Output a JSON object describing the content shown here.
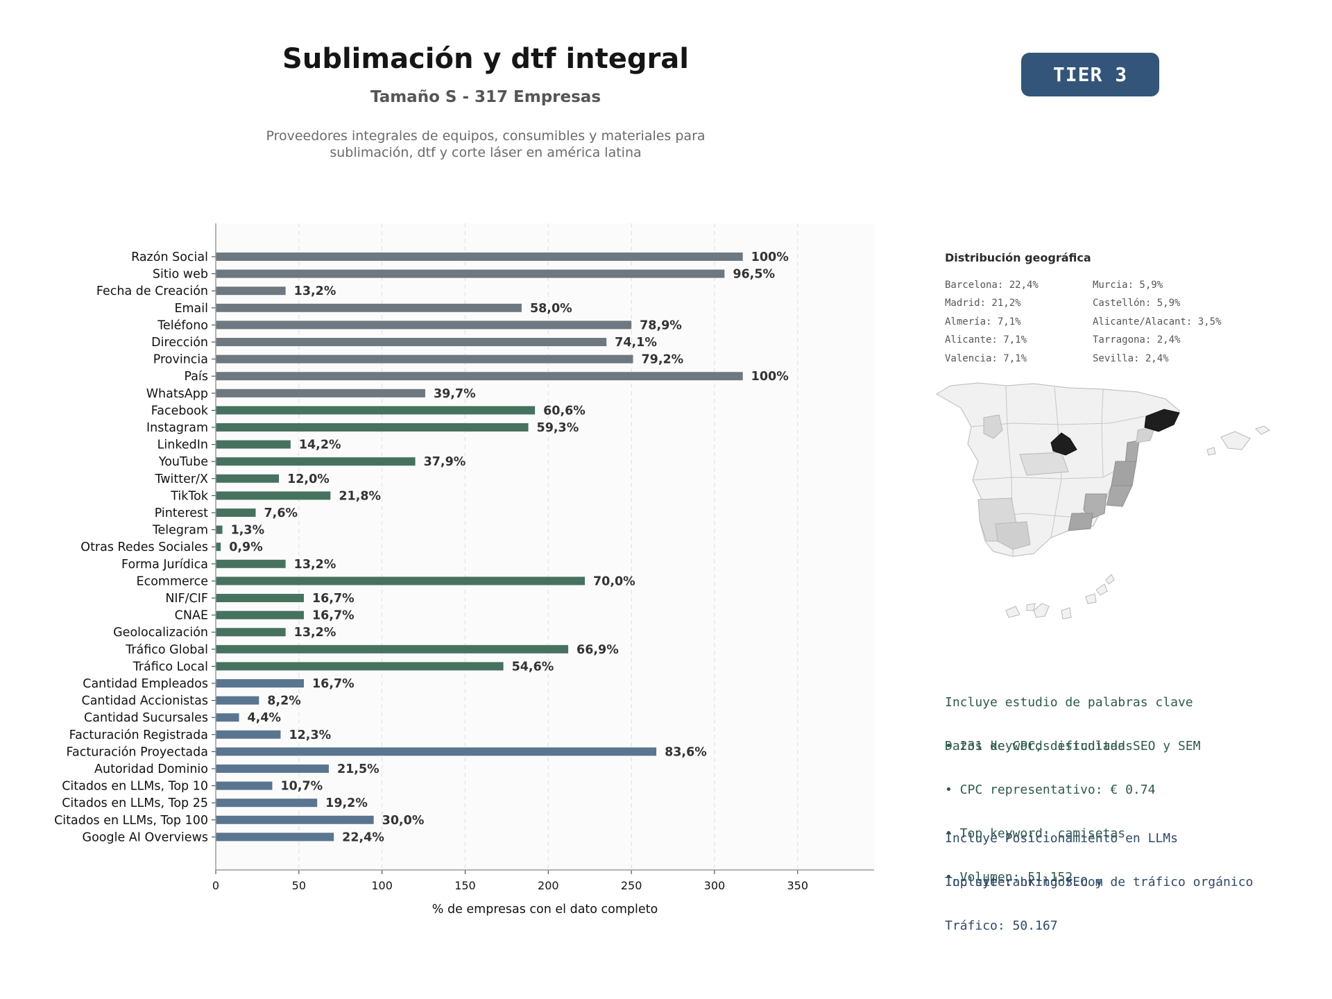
{
  "header": {
    "title": "Sublimación y dtf integral",
    "subtitle": "Tamaño S - 317 Empresas",
    "description_line1": "Proveedores integrales de equipos, consumibles y materiales para",
    "description_line2": "sublimación, dtf y corte láser en américa latina",
    "tier": "TIER 3"
  },
  "chart_data": {
    "type": "bar",
    "orientation": "horizontal",
    "xlabel": "% de empresas con el dato completo",
    "xlim": [
      0,
      396
    ],
    "xticks": [
      0,
      50,
      100,
      150,
      200,
      250,
      300,
      350
    ],
    "grid": true,
    "categories": [
      "Razón Social",
      "Sitio web",
      "Fecha de Creación",
      "Email",
      "Teléfono",
      "Dirección",
      "Provincia",
      "País",
      "WhatsApp",
      "Facebook",
      "Instagram",
      "LinkedIn",
      "YouTube",
      "Twitter/X",
      "TikTok",
      "Pinterest",
      "Telegram",
      "Otras Redes Sociales",
      "Forma Jurídica",
      "Ecommerce",
      "NIF/CIF",
      "CNAE",
      "Geolocalización",
      "Tráfico Global",
      "Tráfico Local",
      "Cantidad Empleados",
      "Cantidad Accionistas",
      "Cantidad Sucursales",
      "Facturación Registrada",
      "Facturación Proyectada",
      "Autoridad Dominio",
      "Citados en LLMs, Top 10",
      "Citados en LLMs, Top 25",
      "Citados en LLMs, Top 100",
      "Google AI Overviews"
    ],
    "values": [
      317,
      306,
      42,
      184,
      250,
      235,
      251,
      317,
      126,
      192,
      188,
      45,
      120,
      38,
      69,
      24,
      4,
      3,
      42,
      222,
      53,
      53,
      42,
      212,
      173,
      53,
      26,
      14,
      39,
      265,
      68,
      34,
      61,
      95,
      71
    ],
    "labels": [
      "100%",
      "96,5%",
      "13,2%",
      "58,0%",
      "78,9%",
      "74,1%",
      "79,2%",
      "100%",
      "39,7%",
      "60,6%",
      "59,3%",
      "14,2%",
      "37,9%",
      "12,0%",
      "21,8%",
      "7,6%",
      "1,3%",
      "0,9%",
      "13,2%",
      "70,0%",
      "16,7%",
      "16,7%",
      "13,2%",
      "66,9%",
      "54,6%",
      "16,7%",
      "8,2%",
      "4,4%",
      "12,3%",
      "83,6%",
      "21,5%",
      "10,7%",
      "19,2%",
      "30,0%",
      "22,4%"
    ],
    "groups": [
      "gray",
      "gray",
      "gray",
      "gray",
      "gray",
      "gray",
      "gray",
      "gray",
      "gray",
      "green",
      "green",
      "green",
      "green",
      "green",
      "green",
      "green",
      "green",
      "green",
      "green",
      "green",
      "green",
      "green",
      "green",
      "green",
      "green",
      "blue",
      "blue",
      "blue",
      "blue",
      "blue",
      "blue",
      "blue",
      "blue",
      "blue",
      "blue"
    ],
    "colors": {
      "gray": "#6e7880",
      "green": "#46725f",
      "blue": "#5a7590"
    }
  },
  "geo": {
    "title": "Distribución geográfica",
    "left": [
      "Barcelona: 22,4%",
      "Madrid: 21,2%",
      "Almería: 7,1%",
      "Alicante: 7,1%",
      "Valencia: 7,1%"
    ],
    "right": [
      "Murcia: 5,9%",
      "Castellón: 5,9%",
      "Alicante/Alacant: 3,5%",
      "Tarragona: 2,4%",
      "Sevilla: 2,4%"
    ]
  },
  "info": {
    "seo_line1": "Incluye estudio de palabras clave",
    "seo_line2": "Datos de CPC, dificultad SEO y SEM",
    "bullet1": "• 231 keywords estudiadas",
    "bullet2": "• CPC representativo: € 0.74",
    "bullet3": "• Top keyword: camisetas",
    "bullet4": "• Volumen: 51.152",
    "llm_line1": "Incluye Posicionamiento en LLMs",
    "llm_line2": "Incluye ranking SEO y de tráfico orgánico",
    "top_site": "Top site: brildor.com",
    "traffic": "Tráfico: 50.167"
  }
}
